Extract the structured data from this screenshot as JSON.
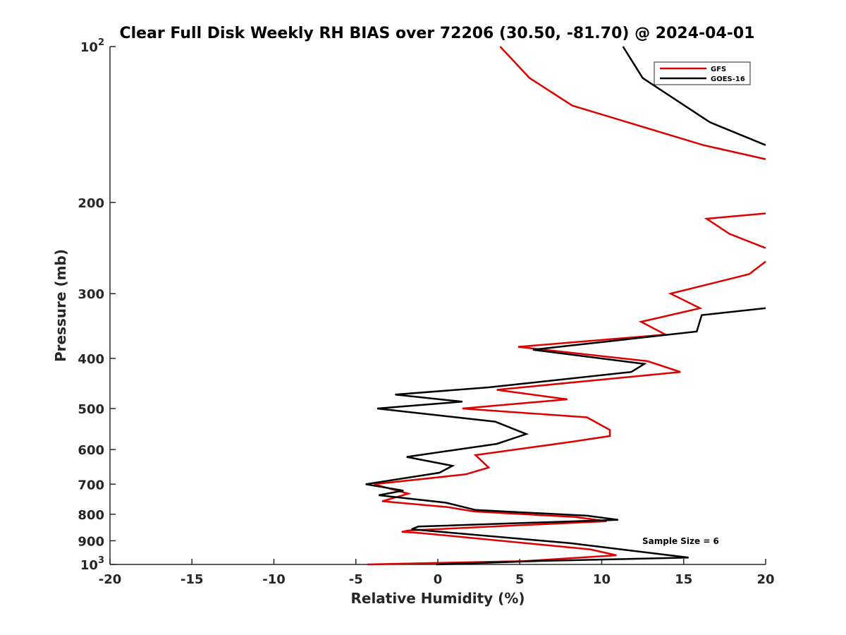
{
  "chart_data": {
    "type": "line",
    "title": "Clear Full Disk Weekly RH BIAS over 72206 (30.50, -81.70) @ 2024-04-01",
    "xlabel": "Relative Humidity (%)",
    "ylabel": "Pressure (mb)",
    "xlim": [
      -20,
      20
    ],
    "ylim": [
      100,
      1000
    ],
    "y_scale": "log",
    "y_reversed": true,
    "grid": false,
    "legend_position": "top-right",
    "annotation": "Sample Size = 6",
    "x_ticks": [
      -20,
      -15,
      -10,
      -5,
      0,
      5,
      10,
      15,
      20
    ],
    "x_tick_labels": [
      "-20",
      "-15",
      "-10",
      "-5",
      "0",
      "5",
      "10",
      "15",
      "20"
    ],
    "y_ticks": [
      100,
      200,
      300,
      400,
      500,
      600,
      700,
      800,
      900,
      1000
    ],
    "y_tick_labels": [
      {
        "base": "10",
        "sup": "2"
      },
      {
        "base": "200"
      },
      {
        "base": "300"
      },
      {
        "base": "400"
      },
      {
        "base": "500"
      },
      {
        "base": "600"
      },
      {
        "base": "700"
      },
      {
        "base": "800"
      },
      {
        "base": "900"
      },
      {
        "base": "10",
        "sup": "3"
      }
    ],
    "series": [
      {
        "name": "GFS",
        "color": "#dd0000",
        "segments": [
          [
            [
              3.8,
              100
            ],
            [
              5.6,
              115
            ],
            [
              8.2,
              130
            ],
            [
              16.2,
              155
            ],
            [
              20,
              165
            ]
          ],
          [
            [
              20,
              210
            ],
            [
              16.4,
              215
            ],
            [
              17.8,
              230
            ],
            [
              20,
              245
            ]
          ],
          [
            [
              20,
              260
            ],
            [
              19.0,
              275
            ],
            [
              14.2,
              300
            ],
            [
              16.0,
              320
            ],
            [
              12.4,
              340
            ],
            [
              13.9,
              360
            ],
            [
              4.9,
              380
            ],
            [
              12.8,
              405
            ],
            [
              14.8,
              425
            ],
            [
              3.6,
              460
            ],
            [
              7.9,
              480
            ],
            [
              1.5,
              500
            ],
            [
              9.1,
              520
            ],
            [
              10.5,
              550
            ],
            [
              10.5,
              565
            ],
            [
              8.1,
              580
            ],
            [
              2.3,
              615
            ],
            [
              3.1,
              650
            ],
            [
              1.7,
              670
            ],
            [
              -3.9,
              700
            ],
            [
              -1.8,
              730
            ],
            [
              -3.4,
              755
            ],
            [
              0.6,
              775
            ],
            [
              2.2,
              790
            ],
            [
              8.4,
              810
            ],
            [
              10.3,
              825
            ],
            [
              -1.8,
              860
            ],
            [
              -2.2,
              865
            ],
            [
              -1.0,
              870
            ],
            [
              9.3,
              935
            ],
            [
              10.9,
              960
            ],
            [
              5.3,
              985
            ],
            [
              -4.3,
              1000
            ]
          ]
        ]
      },
      {
        "name": "GOES-16",
        "color": "#000000",
        "segments": [
          [
            [
              11.3,
              100
            ],
            [
              12.5,
              115
            ],
            [
              16.6,
              140
            ],
            [
              20,
              155
            ]
          ],
          [
            [
              20,
              320
            ],
            [
              16.1,
              330
            ],
            [
              15.8,
              355
            ],
            [
              5.8,
              385
            ],
            [
              12.6,
              410
            ],
            [
              11.8,
              425
            ],
            [
              3.1,
              455
            ],
            [
              -2.6,
              470
            ],
            [
              1.5,
              485
            ],
            [
              -3.7,
              500
            ],
            [
              3.5,
              530
            ],
            [
              5.4,
              560
            ],
            [
              3.6,
              585
            ],
            [
              -1.9,
              620
            ],
            [
              0.9,
              645
            ],
            [
              0.1,
              665
            ],
            [
              -4.4,
              700
            ],
            [
              -2.1,
              720
            ],
            [
              -3.6,
              735
            ],
            [
              0.5,
              760
            ],
            [
              2.3,
              785
            ],
            [
              9.1,
              805
            ],
            [
              11.0,
              820
            ],
            [
              -1.2,
              845
            ],
            [
              -1.6,
              855
            ],
            [
              8.1,
              910
            ],
            [
              15.3,
              970
            ],
            [
              6.0,
              985
            ],
            [
              -0.1,
              1000
            ]
          ]
        ]
      }
    ]
  }
}
